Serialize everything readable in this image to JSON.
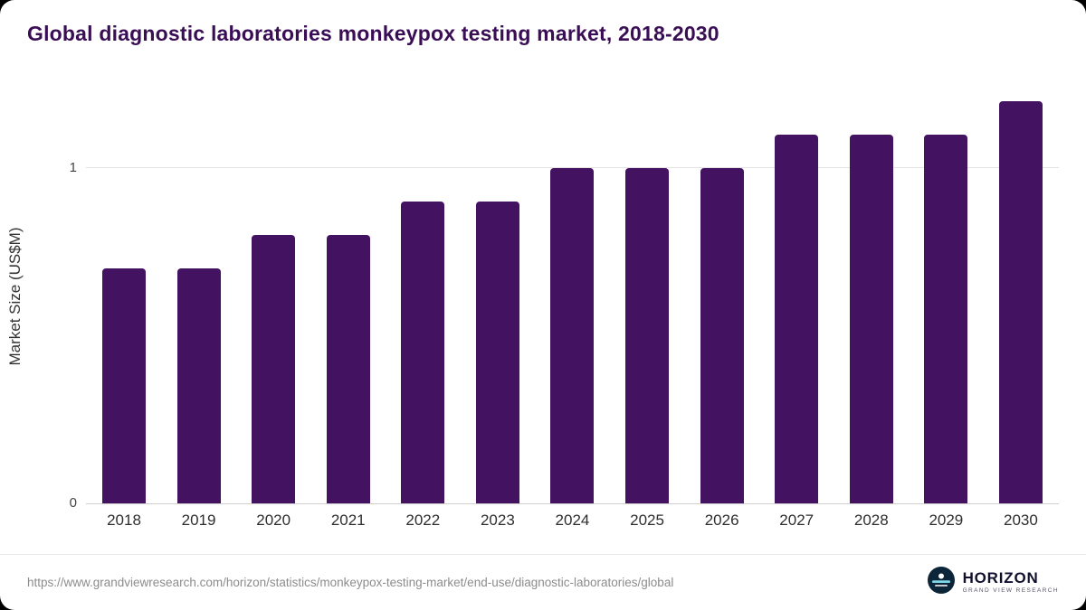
{
  "title": "Global diagnostic laboratories monkeypox testing market, 2018-2030",
  "chart_data": {
    "type": "bar",
    "categories": [
      "2018",
      "2019",
      "2020",
      "2021",
      "2022",
      "2023",
      "2024",
      "2025",
      "2026",
      "2027",
      "2028",
      "2029",
      "2030"
    ],
    "values": [
      0.7,
      0.7,
      0.8,
      0.8,
      0.9,
      0.9,
      1.0,
      1.0,
      1.0,
      1.1,
      1.1,
      1.1,
      1.2
    ],
    "title": "Global diagnostic laboratories monkeypox testing market, 2018-2030",
    "xlabel": "",
    "ylabel": "Market Size (US$M)",
    "ylim": [
      0,
      1.23
    ],
    "yticks": [
      0,
      1
    ],
    "legend": "none",
    "grid": "single horizontal gridline at y=1",
    "bar_color": "#431260"
  },
  "footer": {
    "source_url": "https://www.grandviewresearch.com/horizon/statistics/monkeypox-testing-market/end-use/diagnostic-laboratories/global",
    "logo_title": "HORIZON",
    "logo_subtitle": "GRAND VIEW RESEARCH"
  },
  "colors": {
    "bar": "#431260",
    "title_text": "#3a0e55",
    "axis_text": "#444444",
    "url_text": "#8c8c8c",
    "logo_circle": "#0d2538",
    "logo_band": "#7fd6e8"
  }
}
